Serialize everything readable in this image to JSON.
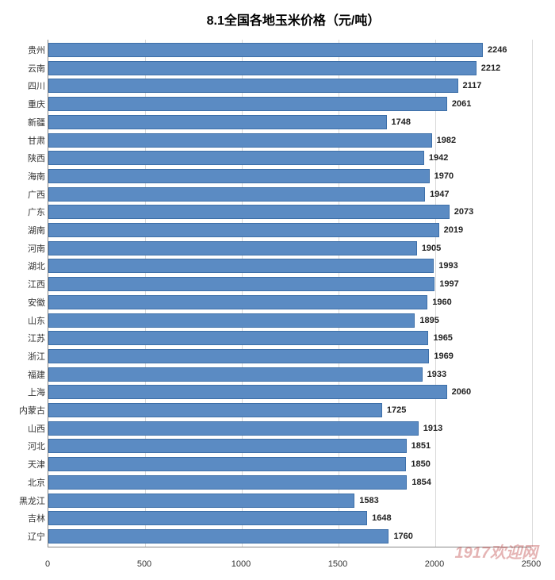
{
  "chart": {
    "type": "bar-horizontal",
    "title": "8.1全国各地玉米价格（元/吨）",
    "title_fontsize": 16,
    "title_color": "#000000",
    "background_color": "#ffffff",
    "xlim": [
      0,
      2500
    ],
    "xtick_step": 500,
    "xticks": [
      0,
      500,
      1000,
      1500,
      2000,
      2500
    ],
    "grid_color": "#d9d9d9",
    "axis_color": "#888888",
    "bar_fill": "#5b8bc3",
    "bar_border": "#3d6fa8",
    "bar_height_ratio": 0.78,
    "label_fontsize": 11,
    "label_color": "#333333",
    "value_fontsize": 11,
    "value_color": "#222222",
    "value_fontweight": "bold",
    "tick_fontsize": 11,
    "tick_color": "#333333",
    "categories": [
      "贵州",
      "云南",
      "四川",
      "重庆",
      "新疆",
      "甘肃",
      "陕西",
      "海南",
      "广西",
      "广东",
      "湖南",
      "河南",
      "湖北",
      "江西",
      "安徽",
      "山东",
      "江苏",
      "浙江",
      "福建",
      "上海",
      "内蒙古",
      "山西",
      "河北",
      "天津",
      "北京",
      "黑龙江",
      "吉林",
      "辽宁"
    ],
    "values": [
      2246,
      2212,
      2117,
      2061,
      1748,
      1982,
      1942,
      1970,
      1947,
      2073,
      2019,
      1905,
      1993,
      1997,
      1960,
      1895,
      1965,
      1969,
      1933,
      2060,
      1725,
      1913,
      1851,
      1850,
      1854,
      1583,
      1648,
      1760
    ]
  },
  "watermark": {
    "text": "1917欢迎网",
    "color": "rgba(180,40,40,0.35)",
    "fontsize": 20
  }
}
